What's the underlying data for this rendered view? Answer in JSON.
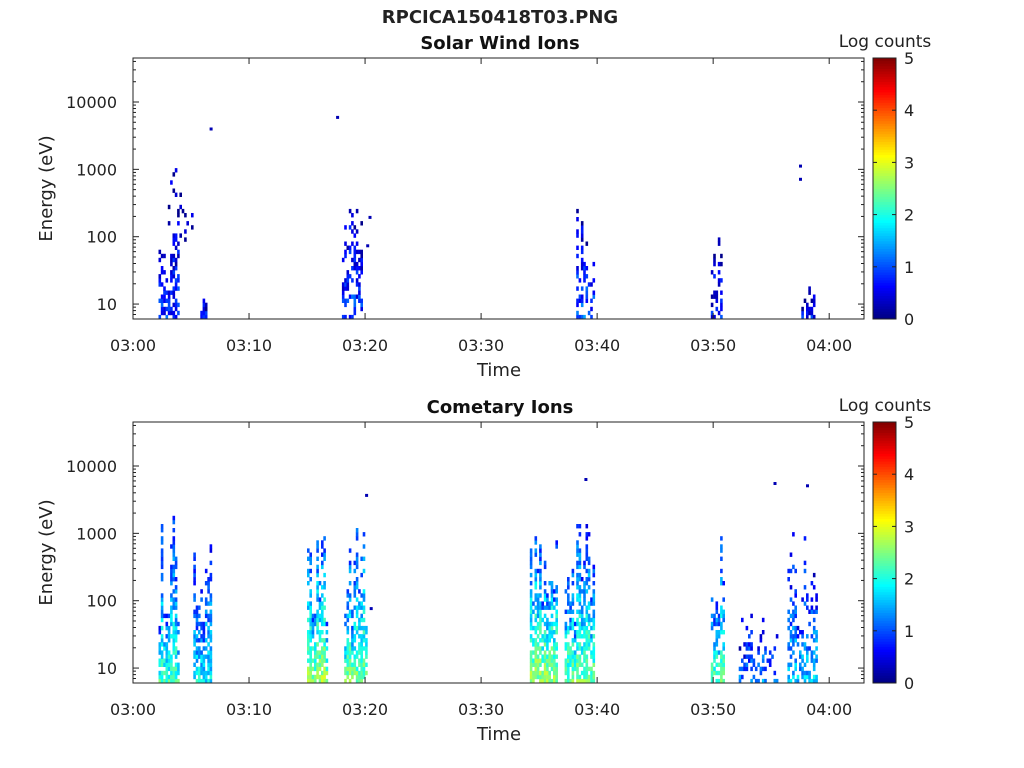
{
  "figure_title": "RPCICA150418T03.PNG",
  "chart_data": [
    {
      "type": "heatmap",
      "title": "Solar Wind Ions",
      "xlabel": "Time",
      "ylabel": "Energy (eV)",
      "x_ticks": [
        "03:00",
        "03:10",
        "03:20",
        "03:30",
        "03:40",
        "03:50",
        "04:00"
      ],
      "x_range": [
        "03:00",
        "04:03"
      ],
      "y_scale": "log",
      "y_ticks": [
        10,
        100,
        1000,
        10000
      ],
      "y_range": [
        6,
        45000
      ],
      "colorbar": {
        "label": "Log counts",
        "range": [
          0,
          5
        ],
        "ticks": [
          0,
          1,
          2,
          3,
          4,
          5
        ],
        "colormap": "jet"
      },
      "bursts": [
        {
          "t_start": 2.2,
          "t_end": 4.0,
          "e_min": 6,
          "e_max": 260,
          "level": 0.75,
          "density": 0.55
        },
        {
          "t_start": 3.0,
          "t_end": 5.2,
          "e_min": 80,
          "e_max": 2000,
          "level": 0.4,
          "density": 0.1
        },
        {
          "t_start": 5.8,
          "t_end": 6.4,
          "e_min": 6,
          "e_max": 14,
          "level": 0.6,
          "density": 0.8
        },
        {
          "t_start": 18.0,
          "t_end": 19.8,
          "e_min": 6,
          "e_max": 800,
          "level": 0.8,
          "density": 0.45
        },
        {
          "t_start": 38.2,
          "t_end": 39.8,
          "e_min": 6,
          "e_max": 480,
          "level": 0.9,
          "density": 0.45
        },
        {
          "t_start": 49.8,
          "t_end": 50.8,
          "e_min": 6,
          "e_max": 200,
          "level": 0.6,
          "density": 0.4
        },
        {
          "t_start": 57.6,
          "t_end": 58.8,
          "e_min": 6,
          "e_max": 18,
          "level": 0.6,
          "density": 0.6
        }
      ],
      "isolated_points": [
        {
          "t": 6.6,
          "e": 3900
        },
        {
          "t": 17.5,
          "e": 5800
        },
        {
          "t": 57.4,
          "e": 1100
        },
        {
          "t": 57.4,
          "e": 700
        },
        {
          "t": 20.3,
          "e": 190
        },
        {
          "t": 20.1,
          "e": 72
        }
      ]
    },
    {
      "type": "heatmap",
      "title": "Cometary Ions",
      "xlabel": "Time",
      "ylabel": "Energy (eV)",
      "x_ticks": [
        "03:00",
        "03:10",
        "03:20",
        "03:30",
        "03:40",
        "03:50",
        "04:00"
      ],
      "x_range": [
        "03:00",
        "04:03"
      ],
      "y_scale": "log",
      "y_ticks": [
        10,
        100,
        1000,
        10000
      ],
      "y_range": [
        6,
        45000
      ],
      "colorbar": {
        "label": "Log counts",
        "range": [
          0,
          5
        ],
        "ticks": [
          0,
          1,
          2,
          3,
          4,
          5
        ],
        "colormap": "jet"
      },
      "bursts": [
        {
          "t_start": 2.2,
          "t_end": 4.0,
          "e_min": 6,
          "e_max": 1800,
          "level": 1.9,
          "density": 0.75
        },
        {
          "t_start": 5.2,
          "t_end": 6.8,
          "e_min": 6,
          "e_max": 1400,
          "level": 1.6,
          "density": 0.7
        },
        {
          "t_start": 15.0,
          "t_end": 16.8,
          "e_min": 6,
          "e_max": 2100,
          "level": 2.3,
          "density": 0.75
        },
        {
          "t_start": 18.2,
          "t_end": 20.2,
          "e_min": 6,
          "e_max": 1500,
          "level": 2.1,
          "density": 0.75
        },
        {
          "t_start": 34.2,
          "t_end": 36.6,
          "e_min": 6,
          "e_max": 2000,
          "level": 2.3,
          "density": 0.75
        },
        {
          "t_start": 37.2,
          "t_end": 39.8,
          "e_min": 6,
          "e_max": 1600,
          "level": 2.1,
          "density": 0.75
        },
        {
          "t_start": 49.8,
          "t_end": 51.0,
          "e_min": 6,
          "e_max": 1600,
          "level": 2.0,
          "density": 0.6
        },
        {
          "t_start": 52.2,
          "t_end": 55.6,
          "e_min": 6,
          "e_max": 130,
          "level": 1.1,
          "density": 0.35
        },
        {
          "t_start": 56.4,
          "t_end": 59.0,
          "e_min": 6,
          "e_max": 1400,
          "level": 1.4,
          "density": 0.45
        }
      ],
      "isolated_points": [
        {
          "t": 20.0,
          "e": 3600
        },
        {
          "t": 38.9,
          "e": 6200
        },
        {
          "t": 55.2,
          "e": 5400
        },
        {
          "t": 58.0,
          "e": 5000
        },
        {
          "t": 20.4,
          "e": 75
        }
      ]
    }
  ]
}
